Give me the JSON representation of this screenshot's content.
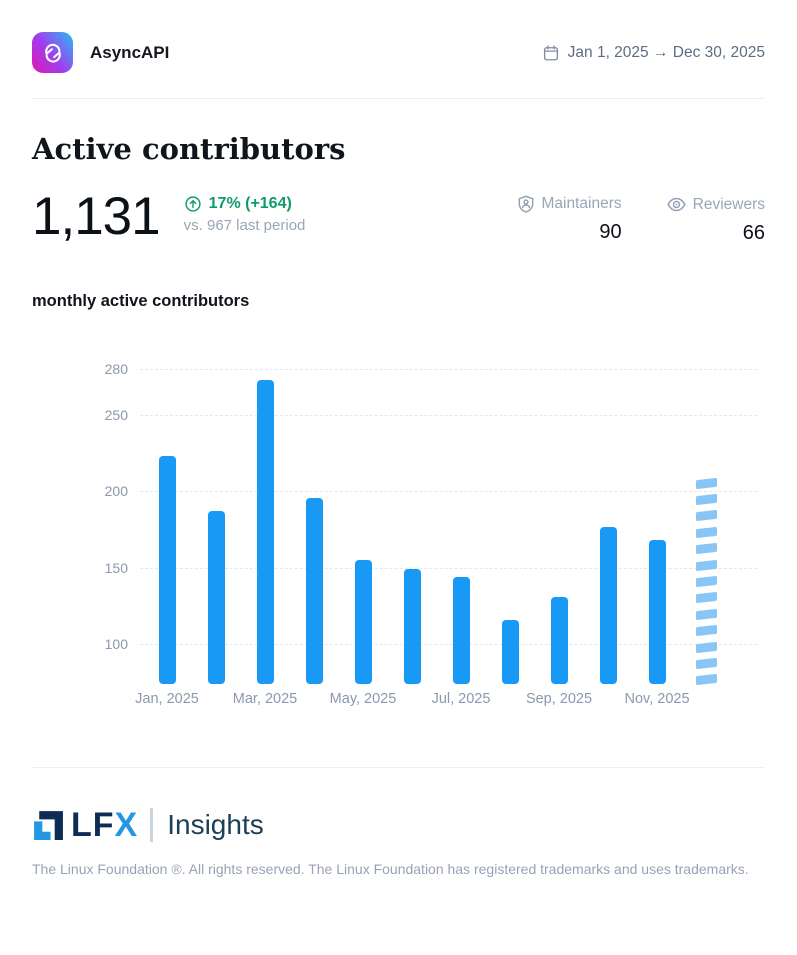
{
  "header": {
    "project_name": "AsyncAPI",
    "date_range": "Jan 1, 2025 → Dec 30, 2025"
  },
  "title": "Active contributors",
  "summary": {
    "value": "1,131",
    "trend": "17% (+164)",
    "comparison": "vs. 967 last period",
    "maintainers_label": "Maintainers",
    "maintainers_value": "90",
    "reviewers_label": "Reviewers",
    "reviewers_value": "66"
  },
  "chart_title": "monthly active contributors",
  "chart_data": {
    "type": "bar",
    "title": "monthly active contributors",
    "categories": [
      "Jan, 2025",
      "Feb, 2025",
      "Mar, 2025",
      "Apr, 2025",
      "May, 2025",
      "Jun, 2025",
      "Jul, 2025",
      "Aug, 2025",
      "Sep, 2025",
      "Oct, 2025",
      "Nov, 2025",
      "Dec, 2025"
    ],
    "values": [
      223,
      187,
      273,
      196,
      155,
      149,
      144,
      116,
      131,
      177,
      168,
      212
    ],
    "projected_last_bar": true,
    "xtick_labels": [
      "Jan, 2025",
      "Mar, 2025",
      "May, 2025",
      "Jul, 2025",
      "Sep, 2025",
      "Nov, 2025"
    ],
    "yticks": [
      100,
      150,
      200,
      250,
      280
    ],
    "ylim": [
      74,
      287
    ],
    "grid": "dashed-horizontal",
    "legend": "none",
    "bar_color": "#1899f6",
    "projected_bar_color": "#8ac6f5"
  },
  "footer": {
    "logo_lf": "LF",
    "logo_x": "X",
    "brand": "Insights",
    "copyright": "The Linux Foundation ®. All rights reserved. The Linux Foundation has registered trademarks and uses trademarks."
  }
}
